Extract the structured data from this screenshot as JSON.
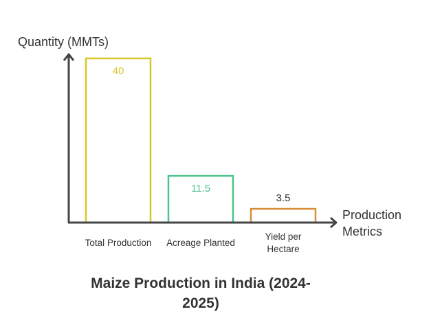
{
  "chart_data": {
    "type": "bar",
    "title": "Maize Production in India (2024-2025)",
    "title_lines": [
      "Maize Production in India (2024-",
      "2025)"
    ],
    "ylabel": "Quantity (MMTs)",
    "xlabel_lines": [
      "Production",
      "Metrics"
    ],
    "xlabel": "Production Metrics",
    "categories": [
      "Total Production",
      "Acreage Planted",
      "Yield per Hectare"
    ],
    "category_lines": [
      [
        "Total Production"
      ],
      [
        "Acreage Planted"
      ],
      [
        "Yield per",
        "Hectare"
      ]
    ],
    "values": [
      40,
      11.5,
      3.5
    ],
    "value_labels": [
      "40",
      "11.5",
      "3.5"
    ],
    "colors": [
      "#d8c72b",
      "#4cc38a",
      "#d98c3a"
    ],
    "label_colors": [
      "#d8c72b",
      "#4cc38a",
      "#333333"
    ],
    "ylim": [
      0,
      40
    ],
    "grid": false,
    "axis_color": "#444444"
  }
}
